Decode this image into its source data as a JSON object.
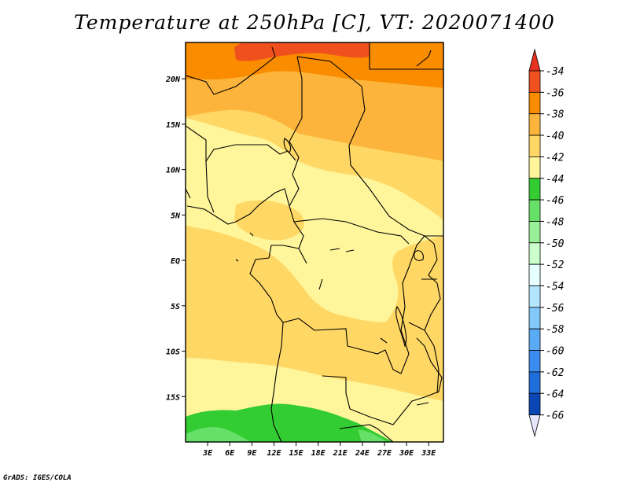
{
  "title": "Temperature at 250hPa [C], VT: 2020071400",
  "credit": "GrADS: IGES/COLA",
  "map": {
    "lon_range": [
      0,
      35
    ],
    "lat_range": [
      -20,
      24
    ],
    "lat_labels": [
      "20N",
      "15N",
      "10N",
      "5N",
      "EQ",
      "5S",
      "10S",
      "15S"
    ],
    "lat_values": [
      20,
      15,
      10,
      5,
      0,
      -5,
      -10,
      -15
    ],
    "lon_labels": [
      "3E",
      "6E",
      "9E",
      "12E",
      "15E",
      "18E",
      "21E",
      "24E",
      "27E",
      "30E",
      "33E"
    ],
    "lon_values": [
      3,
      6,
      9,
      12,
      15,
      18,
      21,
      24,
      27,
      30,
      33
    ]
  },
  "colorbar": {
    "labels": [
      "-34",
      "-36",
      "-38",
      "-40",
      "-42",
      "-44",
      "-46",
      "-48",
      "-50",
      "-52",
      "-54",
      "-56",
      "-58",
      "-60",
      "-62",
      "-64",
      "-66"
    ],
    "colors": [
      "#f0501e",
      "#fa8c00",
      "#fcb43c",
      "#ffd764",
      "#fff59b",
      "#33cc33",
      "#66e066",
      "#99f099",
      "#ccffcc",
      "#e6ffff",
      "#b4e6ff",
      "#82c8fa",
      "#5aaaf5",
      "#3c8cf0",
      "#1e6edc",
      "#0a46b4",
      "#0a1e78",
      "#000050"
    ],
    "under_color": "#e6e6ff",
    "over_color": "#e6321e"
  }
}
